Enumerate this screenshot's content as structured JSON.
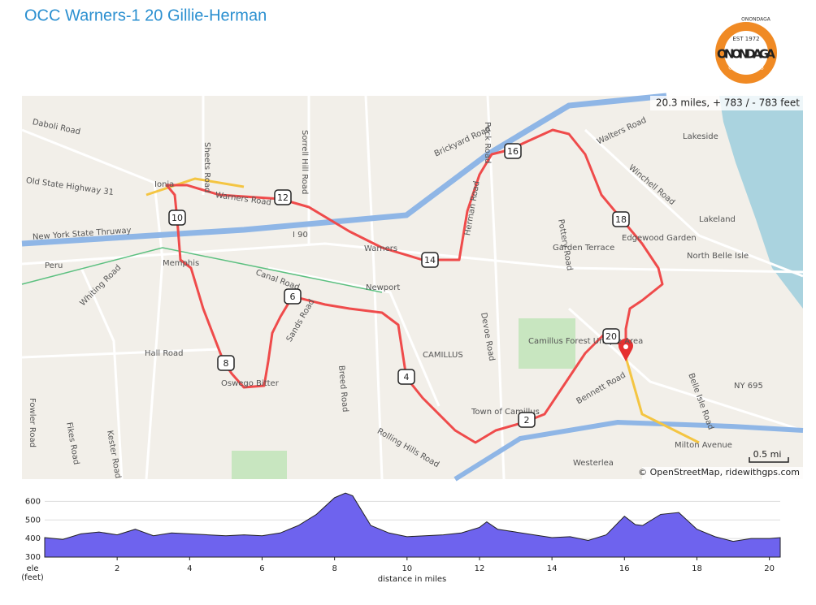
{
  "header": {
    "title": "OCC Warners-1 20 Gillie-Herman"
  },
  "logo": {
    "top": "ONONDAGA",
    "est": "EST 1972",
    "name": "ONONDAGA",
    "sub": "CYCLING CLUB"
  },
  "map": {
    "summary": "20.3 miles, + 783 / - 783 feet",
    "attribution": "© OpenStreetMap, ridewithgps.com",
    "scale": "0.5 mi",
    "markers": [
      "2",
      "4",
      "6",
      "8",
      "10",
      "12",
      "14",
      "16",
      "18",
      "20"
    ],
    "labels": [
      "Daboli Road",
      "Old State Highway 31",
      "New York State Thruway",
      "Peru",
      "Memphis",
      "Ionia",
      "Warners Road",
      "Canal Road",
      "Newport",
      "Whiting Road",
      "Hall Road",
      "Oswego Bitter",
      "Sands Road",
      "Breed Road",
      "CAMILLUS",
      "Camillus Forest Unique Area",
      "Town of Camillus",
      "Rolling Hills Road",
      "Warners",
      "Garden Terrace",
      "Edgewood Garden",
      "North Belle Isle",
      "Lakeside",
      "Lakeland",
      "Walters Road",
      "Winchell Road",
      "Brickyard Road",
      "Peck Road",
      "Pottery Road",
      "Devoe Road",
      "Bennett Road",
      "Milton Avenue",
      "Westerlea",
      "Fowler Road",
      "Fikes Road",
      "Kester Road",
      "Sheets Road",
      "Sorrell Hill Road",
      "Herman Road",
      "Belle Isle Road",
      "NY 695",
      "I 90"
    ]
  },
  "chart_data": {
    "type": "area",
    "color": "#6e63ee",
    "x": [
      0,
      0.5,
      1,
      1.5,
      2,
      2.5,
      3,
      3.5,
      4,
      4.5,
      5,
      5.5,
      6,
      6.5,
      7,
      7.5,
      8,
      8.3,
      8.5,
      9,
      9.5,
      10,
      10.5,
      11,
      11.5,
      12,
      12.2,
      12.5,
      13,
      13.5,
      14,
      14.5,
      15,
      15.5,
      16,
      16.3,
      16.5,
      17,
      17.5,
      18,
      18.5,
      19,
      19.5,
      20,
      20.3
    ],
    "values": [
      405,
      395,
      425,
      435,
      420,
      450,
      415,
      430,
      425,
      420,
      415,
      420,
      415,
      430,
      470,
      530,
      620,
      645,
      630,
      470,
      430,
      410,
      415,
      420,
      430,
      460,
      490,
      450,
      435,
      420,
      405,
      410,
      390,
      420,
      520,
      475,
      470,
      530,
      540,
      450,
      410,
      385,
      400,
      400,
      405
    ],
    "xlim": [
      0,
      20.3
    ],
    "ylim": [
      300,
      650
    ],
    "xticks": [
      2,
      4,
      6,
      8,
      10,
      12,
      14,
      16,
      18,
      20
    ],
    "yticks": [
      300,
      400,
      500,
      600
    ],
    "y_label": "ele\n(feet)",
    "x_label": "distance in miles",
    "grid": true
  }
}
